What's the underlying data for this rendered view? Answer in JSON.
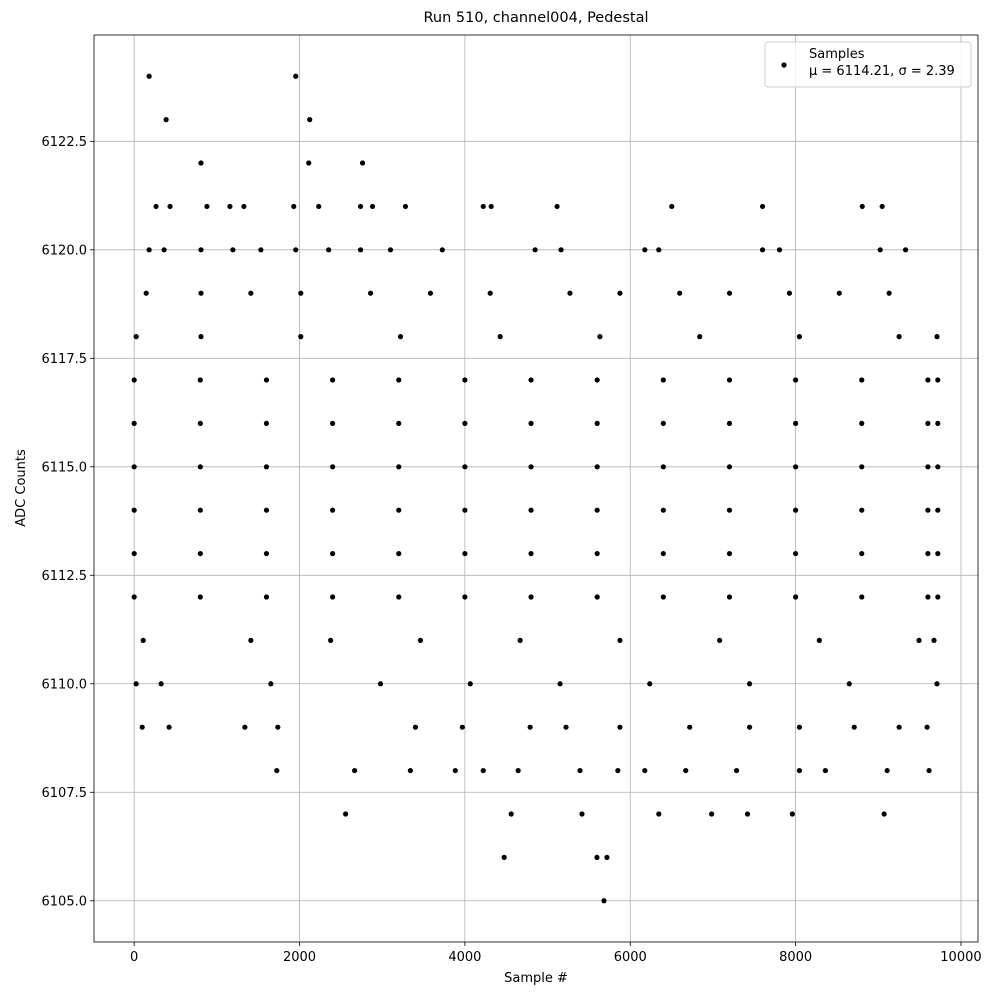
{
  "chart_data": {
    "type": "scatter",
    "title": "Run 510, channel004, Pedestal",
    "xlabel": "Sample #",
    "ylabel": "ADC Counts",
    "xlim": [
      -486,
      10206
    ],
    "ylim": [
      6104.05,
      6124.95
    ],
    "xticks": [
      0,
      2000,
      4000,
      6000,
      8000,
      10000
    ],
    "yticks": [
      {
        "value": 6105,
        "label": "6105.0"
      },
      {
        "value": 6107.5,
        "label": "6107.5"
      },
      {
        "value": 6110,
        "label": "6110.0"
      },
      {
        "value": 6112.5,
        "label": "6112.5"
      },
      {
        "value": 6115,
        "label": "6115.0"
      },
      {
        "value": 6117.5,
        "label": "6117.5"
      },
      {
        "value": 6120,
        "label": "6120.0"
      },
      {
        "value": 6122.5,
        "label": "6122.5"
      }
    ],
    "grid": true,
    "legend": "upper right",
    "x": [
      181,
      1954,
      386,
      2123,
      808,
      2111,
      2762,
      265,
      434,
      880,
      1158,
      1327,
      1930,
      2232,
      2738,
      2883,
      3281,
      4222,
      4318,
      5115,
      6502,
      7600,
      8806,
      9047,
      181,
      362,
      808,
      1194,
      1532,
      1954,
      2352,
      2738,
      3100,
      3727,
      4849,
      5163,
      6176,
      6345,
      7600,
      7805,
      9023,
      9330,
      145,
      808,
      1411,
      2015,
      2859,
      3583,
      4306,
      5271,
      5875,
      6598,
      7201,
      7925,
      8528,
      9131,
      24,
      808,
      2015,
      3221,
      4427,
      5633,
      6840,
      8046,
      9252,
      9710,
      0,
      800,
      1600,
      2400,
      3200,
      4000,
      4800,
      5600,
      6400,
      7200,
      8000,
      8800,
      9600,
      9720,
      0,
      800,
      1600,
      2400,
      3200,
      4000,
      4800,
      5600,
      6400,
      7200,
      8000,
      8800,
      9600,
      9720,
      0,
      800,
      1600,
      2400,
      3200,
      4000,
      4800,
      5600,
      6400,
      7200,
      8000,
      8800,
      9600,
      9720,
      0,
      800,
      1600,
      2400,
      3200,
      4000,
      4800,
      5600,
      6400,
      7200,
      8000,
      8800,
      9600,
      9720,
      0,
      800,
      1600,
      2400,
      3200,
      4000,
      4800,
      5600,
      6400,
      7200,
      8000,
      8800,
      9600,
      9720,
      0,
      800,
      1600,
      2400,
      3200,
      4000,
      4800,
      5600,
      6400,
      7200,
      8000,
      8800,
      9600,
      9720,
      109,
      1411,
      2376,
      3462,
      4668,
      5875,
      7081,
      8287,
      9493,
      9674,
      24,
      326,
      1653,
      2979,
      4065,
      5151,
      6236,
      7443,
      8649,
      9710,
      97,
      422,
      1339,
      1737,
      3402,
      3969,
      4789,
      5223,
      5875,
      6719,
      7443,
      8046,
      8709,
      9252,
      9590,
      1725,
      2666,
      3341,
      3884,
      4222,
      4644,
      5392,
      5850,
      6176,
      6671,
      7286,
      8046,
      8360,
      9107,
      9614,
      2557,
      4560,
      5416,
      6345,
      6984,
      7418,
      7961,
      9071,
      4475,
      5597,
      5718,
      5682
    ],
    "series": [
      {
        "name": "Samples\nμ = 6114.21, σ = 2.39",
        "color": "#000000",
        "values": [
          6124,
          6124,
          6123,
          6123,
          6122,
          6122,
          6122,
          6121,
          6121,
          6121,
          6121,
          6121,
          6121,
          6121,
          6121,
          6121,
          6121,
          6121,
          6121,
          6121,
          6121,
          6121,
          6121,
          6121,
          6120,
          6120,
          6120,
          6120,
          6120,
          6120,
          6120,
          6120,
          6120,
          6120,
          6120,
          6120,
          6120,
          6120,
          6120,
          6120,
          6120,
          6120,
          6119,
          6119,
          6119,
          6119,
          6119,
          6119,
          6119,
          6119,
          6119,
          6119,
          6119,
          6119,
          6119,
          6119,
          6118,
          6118,
          6118,
          6118,
          6118,
          6118,
          6118,
          6118,
          6118,
          6118,
          6117,
          6117,
          6117,
          6117,
          6117,
          6117,
          6117,
          6117,
          6117,
          6117,
          6117,
          6117,
          6117,
          6117,
          6116,
          6116,
          6116,
          6116,
          6116,
          6116,
          6116,
          6116,
          6116,
          6116,
          6116,
          6116,
          6116,
          6116,
          6115,
          6115,
          6115,
          6115,
          6115,
          6115,
          6115,
          6115,
          6115,
          6115,
          6115,
          6115,
          6115,
          6115,
          6114,
          6114,
          6114,
          6114,
          6114,
          6114,
          6114,
          6114,
          6114,
          6114,
          6114,
          6114,
          6114,
          6114,
          6113,
          6113,
          6113,
          6113,
          6113,
          6113,
          6113,
          6113,
          6113,
          6113,
          6113,
          6113,
          6113,
          6113,
          6112,
          6112,
          6112,
          6112,
          6112,
          6112,
          6112,
          6112,
          6112,
          6112,
          6112,
          6112,
          6112,
          6112,
          6111,
          6111,
          6111,
          6111,
          6111,
          6111,
          6111,
          6111,
          6111,
          6111,
          6110,
          6110,
          6110,
          6110,
          6110,
          6110,
          6110,
          6110,
          6110,
          6110,
          6109,
          6109,
          6109,
          6109,
          6109,
          6109,
          6109,
          6109,
          6109,
          6109,
          6109,
          6109,
          6109,
          6109,
          6109,
          6108,
          6108,
          6108,
          6108,
          6108,
          6108,
          6108,
          6108,
          6108,
          6108,
          6108,
          6108,
          6108,
          6108,
          6108,
          6107,
          6107,
          6107,
          6107,
          6107,
          6107,
          6107,
          6107,
          6106,
          6106,
          6106,
          6105
        ]
      }
    ]
  }
}
